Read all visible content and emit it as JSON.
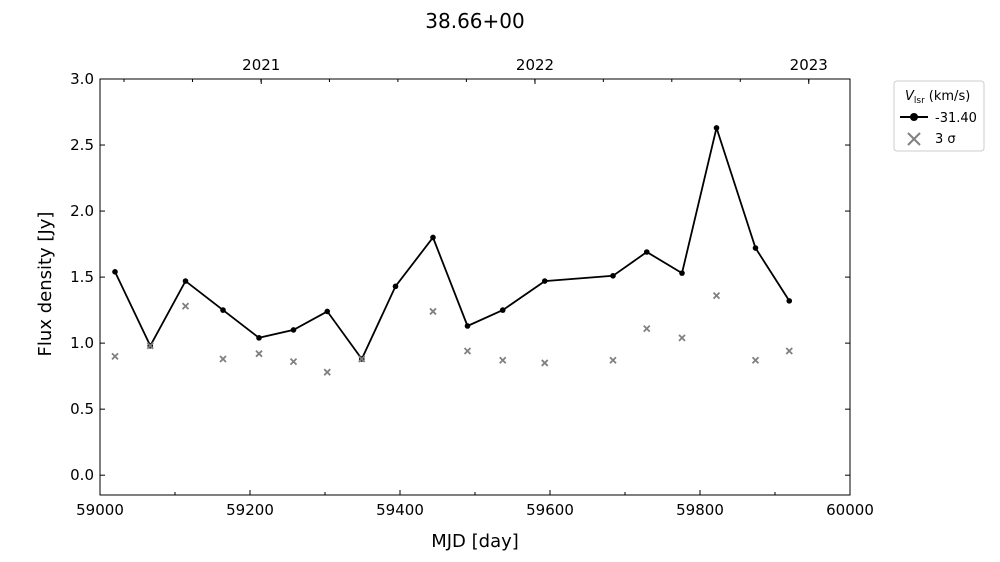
{
  "chart_data": {
    "type": "line",
    "title": "38.66+00",
    "xlabel": "MJD [day]",
    "ylabel": "Flux density [Jy]",
    "xlim": [
      59000,
      60000
    ],
    "ylim": [
      -0.15,
      3.0
    ],
    "x_ticks": [
      59000,
      59200,
      59400,
      59600,
      59800,
      60000
    ],
    "y_ticks": [
      0.0,
      0.5,
      1.0,
      1.5,
      2.0,
      2.5,
      3.0
    ],
    "y_tick_labels": [
      "0.0",
      "0.5",
      "1.0",
      "1.5",
      "2.0",
      "2.5",
      "3.0"
    ],
    "top_axis": {
      "ticks": [
        {
          "mjd": 59215,
          "label": "2021"
        },
        {
          "mjd": 59580,
          "label": "2022"
        },
        {
          "mjd": 59945,
          "label": "2023"
        }
      ]
    },
    "legend": {
      "title_main": "V",
      "title_sub": "lsr",
      "title_unit": "(km/s)",
      "position": "outside-right-top",
      "entries": [
        "-31.40",
        "3 σ"
      ]
    },
    "grid": false,
    "series": [
      {
        "name": "-31.40",
        "color": "#000000",
        "marker": "circle",
        "x": [
          59020,
          59067,
          59114,
          59164,
          59212,
          59258,
          59303,
          59349,
          59394,
          59444,
          59490,
          59537,
          59593,
          59684,
          59729,
          59776,
          59822,
          59874,
          59919
        ],
        "y": [
          1.54,
          0.98,
          1.47,
          1.25,
          1.04,
          1.1,
          1.24,
          0.88,
          1.43,
          1.8,
          1.13,
          1.25,
          1.47,
          1.51,
          1.69,
          1.53,
          2.63,
          1.72,
          1.32
        ]
      },
      {
        "name": "3 σ",
        "color": "#808080",
        "marker": "x",
        "x": [
          59020,
          59067,
          59114,
          59164,
          59212,
          59258,
          59303,
          59349,
          59444,
          59490,
          59537,
          59593,
          59684,
          59729,
          59776,
          59822,
          59874,
          59919
        ],
        "y": [
          0.9,
          0.98,
          1.28,
          0.88,
          0.92,
          0.86,
          0.78,
          0.88,
          1.24,
          0.94,
          0.87,
          0.85,
          0.87,
          1.11,
          1.04,
          1.36,
          0.87,
          0.94
        ]
      }
    ]
  }
}
